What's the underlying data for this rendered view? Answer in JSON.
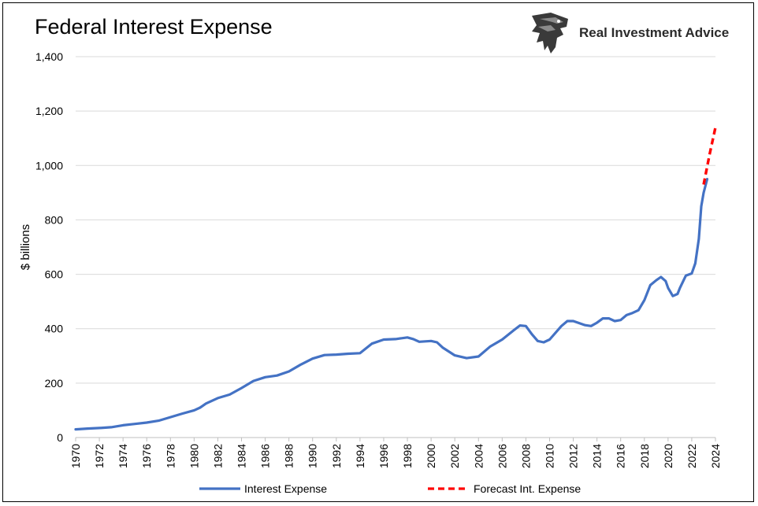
{
  "title": "Federal Interest Expense",
  "brand": {
    "name": "Real Investment Advice",
    "logo_icon": "eagle-logo-icon"
  },
  "chart_data": {
    "type": "line",
    "title": "Federal Interest Expense",
    "xlabel": "",
    "ylabel": "$ billions",
    "xlim": [
      1970,
      2024
    ],
    "ylim": [
      0,
      1400
    ],
    "yticks": [
      0,
      200,
      400,
      600,
      800,
      1000,
      1200,
      1400
    ],
    "ytick_labels": [
      "0",
      "200",
      "400",
      "600",
      "800",
      "1,000",
      "1,200",
      "1,400"
    ],
    "xticks": [
      1970,
      1972,
      1974,
      1976,
      1978,
      1980,
      1982,
      1984,
      1986,
      1988,
      1990,
      1992,
      1994,
      1996,
      1998,
      2000,
      2002,
      2004,
      2006,
      2008,
      2010,
      2012,
      2014,
      2016,
      2018,
      2020,
      2022,
      2024
    ],
    "grid": "horizontal",
    "legend_position": "bottom",
    "series": [
      {
        "name": "Interest Expense",
        "color": "#4472C4",
        "style": "solid",
        "x": [
          1970,
          1971,
          1972,
          1973,
          1974,
          1975,
          1976,
          1977,
          1978,
          1979,
          1980,
          1980.5,
          1981,
          1982,
          1983,
          1984,
          1985,
          1986,
          1987,
          1988,
          1989,
          1990,
          1991,
          1992,
          1993,
          1994,
          1995,
          1996,
          1997,
          1998,
          1998.5,
          1999,
          2000,
          2000.5,
          2001,
          2002,
          2003,
          2004,
          2005,
          2006,
          2007,
          2007.5,
          2008,
          2008.5,
          2009,
          2009.5,
          2010,
          2011,
          2011.5,
          2012,
          2013,
          2013.5,
          2014,
          2014.5,
          2015,
          2015.5,
          2016,
          2016.5,
          2017,
          2017.5,
          2018,
          2018.5,
          2019,
          2019.4,
          2019.8,
          2020,
          2020.4,
          2020.8,
          2021,
          2021.5,
          2022,
          2022.3,
          2022.6,
          2022.8,
          2023,
          2023.3
        ],
        "y": [
          30,
          33,
          35,
          38,
          45,
          50,
          55,
          62,
          75,
          88,
          100,
          110,
          125,
          145,
          158,
          182,
          208,
          222,
          228,
          243,
          268,
          290,
          303,
          305,
          308,
          310,
          345,
          360,
          362,
          368,
          362,
          352,
          355,
          350,
          330,
          302,
          292,
          298,
          335,
          360,
          395,
          412,
          410,
          380,
          355,
          350,
          360,
          410,
          428,
          428,
          413,
          410,
          422,
          438,
          438,
          428,
          432,
          450,
          458,
          468,
          505,
          560,
          578,
          590,
          575,
          550,
          520,
          528,
          550,
          595,
          603,
          640,
          730,
          850,
          900,
          950
        ]
      },
      {
        "name": "Forecast Int. Expense",
        "color": "#FF0000",
        "style": "dashed",
        "x": [
          2023.0,
          2023.5,
          2024.0
        ],
        "y": [
          930,
          1040,
          1140
        ]
      }
    ]
  }
}
